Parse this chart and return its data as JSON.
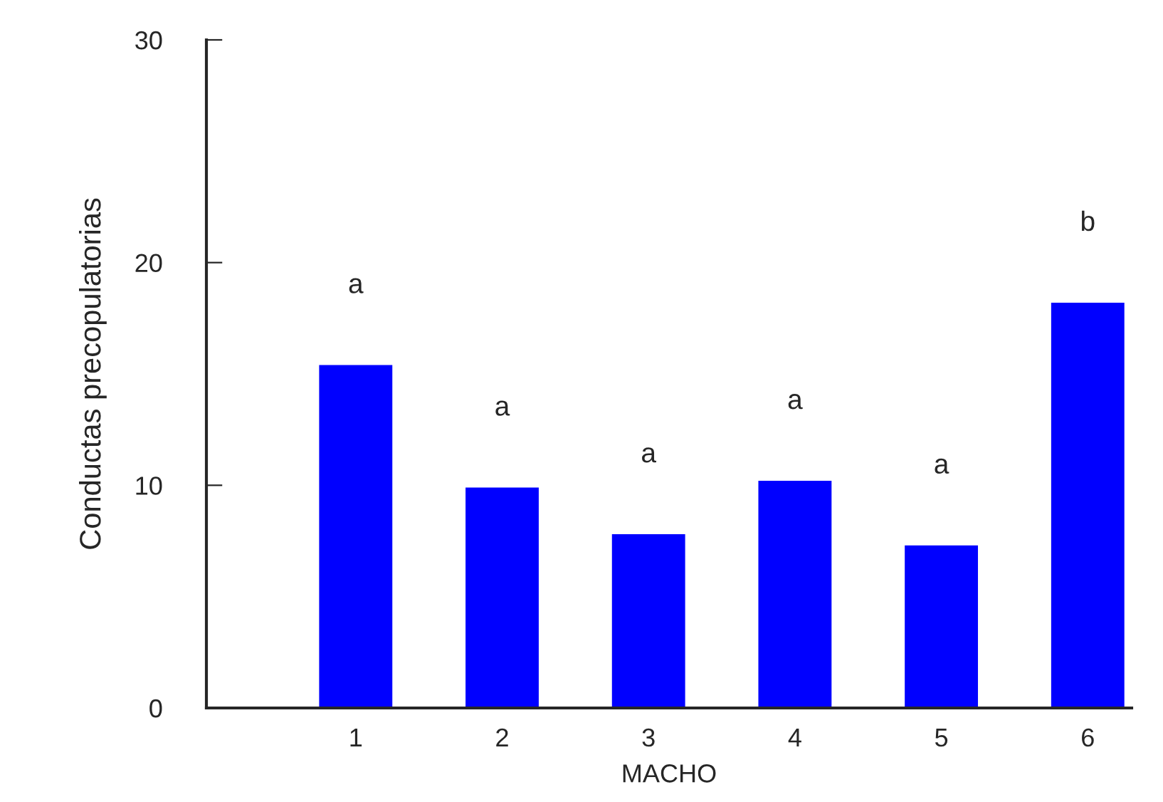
{
  "chart_data": {
    "type": "bar",
    "xlabel": "MACHO",
    "ylabel": "Conductas precopulatorias",
    "categories": [
      "1",
      "2",
      "3",
      "4",
      "5",
      "6"
    ],
    "values": [
      15.4,
      9.9,
      7.8,
      10.2,
      7.3,
      18.2
    ],
    "color": "#0000ff",
    "ylim": [
      0,
      30
    ],
    "yticks": [
      0,
      10,
      20,
      30
    ],
    "grid": false,
    "legend": false,
    "annotations": [
      "a",
      "a",
      "a",
      "a",
      "a",
      "b"
    ]
  }
}
